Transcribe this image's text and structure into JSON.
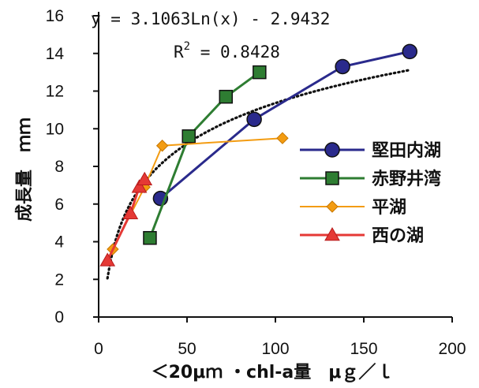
{
  "chart_data": {
    "type": "line",
    "xlabel": "＜20μｍ ・chl-a量　μｇ／ｌ",
    "ylabel": "成長量　ｍｍ",
    "xlim": [
      0,
      200
    ],
    "ylim": [
      0,
      16
    ],
    "xticks": [
      0,
      50,
      100,
      150,
      200
    ],
    "yticks": [
      0,
      2,
      4,
      6,
      8,
      10,
      12,
      14,
      16
    ],
    "grid": false,
    "legend_position": "right",
    "series": [
      {
        "name": "堅田内湖",
        "marker": "circle",
        "color": "#2a2a8c",
        "x": [
          35,
          88,
          138,
          176
        ],
        "y": [
          6.3,
          10.5,
          13.3,
          14.1
        ]
      },
      {
        "name": "赤野井湾",
        "marker": "square",
        "color": "#2e7d32",
        "x": [
          29,
          51,
          72,
          91
        ],
        "y": [
          4.2,
          9.6,
          11.7,
          13.0
        ]
      },
      {
        "name": "平湖",
        "marker": "diamond",
        "color": "#f39c12",
        "x": [
          8,
          26,
          36,
          104
        ],
        "y": [
          3.6,
          6.9,
          9.1,
          9.5
        ]
      },
      {
        "name": "西の湖",
        "marker": "triangle",
        "color": "#e53935",
        "x": [
          5,
          18,
          23,
          26
        ],
        "y": [
          3.0,
          5.5,
          6.9,
          7.3
        ]
      }
    ],
    "trendline": {
      "kind": "logarithmic",
      "coefficient": 3.1063,
      "intercept": -2.9432,
      "equation_label": "y = 3.1063Ln(x) - 2.9432",
      "r2_label": "R",
      "r2_superscript": "2",
      "r2_value_text": " = 0.8428",
      "x_from": 5,
      "x_to": 176
    }
  }
}
